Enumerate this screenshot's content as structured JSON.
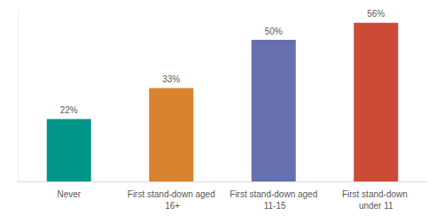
{
  "chart_data": {
    "type": "bar",
    "categories": [
      "Never",
      "First stand-down aged 16+",
      "First stand-down aged 11-15",
      "First stand-down under 11"
    ],
    "values": [
      22,
      33,
      50,
      56
    ],
    "value_labels": [
      "22%",
      "33%",
      "50%",
      "56%"
    ],
    "colors": [
      "#00968a",
      "#d8832f",
      "#6670b0",
      "#cc4b37"
    ],
    "ylim": [
      0,
      60
    ],
    "yticks": [],
    "grid": false,
    "data_labels": true,
    "tick_labels": "x"
  }
}
